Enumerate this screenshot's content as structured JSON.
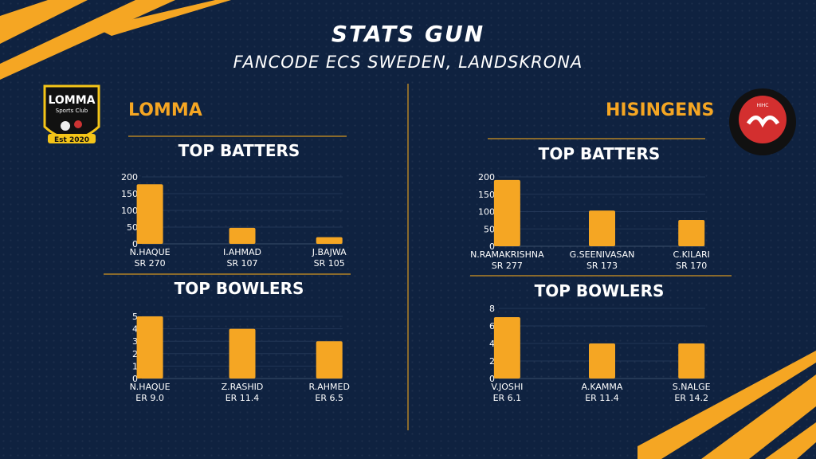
{
  "header": {
    "title": "STATS GUN",
    "subtitle": "FANCODE ECS SWEDEN, LANDSKRONA"
  },
  "teams": [
    {
      "name": "LOMMA",
      "logo_text": [
        "LOMMA",
        "Sports Club",
        "Est 2020"
      ]
    },
    {
      "name": "HISINGENS",
      "logo_text": [
        "HIHC"
      ]
    }
  ],
  "colors": {
    "bar": "#f5a623",
    "background": "#0f2240",
    "accent": "#f5a623"
  },
  "chart_data": [
    {
      "type": "bar",
      "title": "TOP BATTERS",
      "team": "LOMMA",
      "categories": [
        "N.HAQUE",
        "I.AHMAD",
        "J.BAJWA"
      ],
      "sublabels": [
        "SR 270",
        "SR 107",
        "SR 105"
      ],
      "values": [
        178,
        48,
        20
      ],
      "ylim": [
        0,
        200
      ],
      "yticks": [
        0,
        50,
        100,
        150,
        200
      ]
    },
    {
      "type": "bar",
      "title": "TOP BOWLERS",
      "team": "LOMMA",
      "categories": [
        "N.HAQUE",
        "Z.RASHID",
        "R.AHMED"
      ],
      "sublabels": [
        "ER 9.0",
        "ER 11.4",
        "ER 6.5"
      ],
      "values": [
        5,
        4,
        3
      ],
      "ylim": [
        0,
        5
      ],
      "yticks": [
        0,
        1,
        2,
        3,
        4,
        5
      ]
    },
    {
      "type": "bar",
      "title": "TOP BATTERS",
      "team": "HISINGENS",
      "categories": [
        "N.RAMAKRISHNA",
        "G.SEENIVASAN",
        "C.KILARI"
      ],
      "sublabels": [
        "SR 277",
        "SR 173",
        "SR 170"
      ],
      "values": [
        191,
        103,
        76
      ],
      "ylim": [
        0,
        200
      ],
      "yticks": [
        0,
        50,
        100,
        150,
        200
      ]
    },
    {
      "type": "bar",
      "title": "TOP BOWLERS",
      "team": "HISINGENS",
      "categories": [
        "V.JOSHI",
        "A.KAMMA",
        "S.NALGE"
      ],
      "sublabels": [
        "ER 6.1",
        "ER 11.4",
        "ER 14.2"
      ],
      "values": [
        7,
        4,
        4
      ],
      "ylim": [
        0,
        8
      ],
      "yticks": [
        0,
        2,
        4,
        6,
        8
      ]
    }
  ]
}
